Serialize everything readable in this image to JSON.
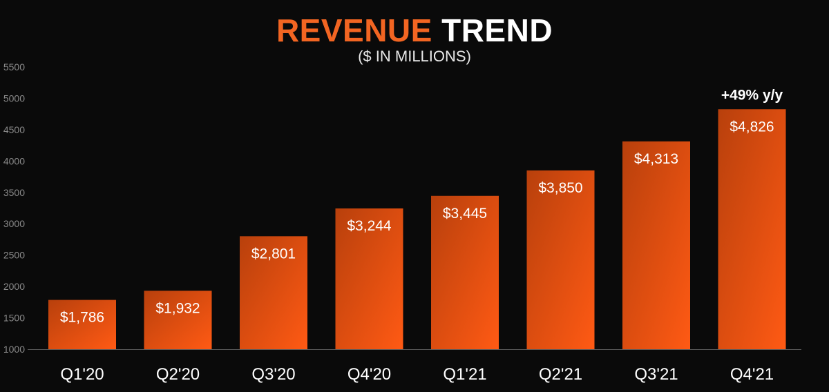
{
  "title": {
    "accent": "REVENUE",
    "main": "TREND"
  },
  "subtitle": "($ IN MILLIONS)",
  "annotation": "+49% y/y",
  "colors": {
    "background": "#0a0a0a",
    "bar_light": "#ff5a14",
    "bar_dark": "#b8400c",
    "title_accent": "#f26522",
    "text": "#ffffff",
    "axis_tick": "#8a8a8a"
  },
  "chart_data": {
    "type": "bar",
    "categories": [
      "Q1'20",
      "Q2'20",
      "Q3'20",
      "Q4'20",
      "Q1'21",
      "Q2'21",
      "Q3'21",
      "Q4'21"
    ],
    "values": [
      1786,
      1932,
      2801,
      3244,
      3445,
      3850,
      4313,
      4826
    ],
    "data_labels": [
      "$1,786",
      "$1,932",
      "$2,801",
      "$3,244",
      "$3,445",
      "$3,850",
      "$4,313",
      "$4,826"
    ],
    "y_ticks": [
      1000,
      1500,
      2000,
      2500,
      3000,
      3500,
      4000,
      4500,
      5000,
      5500
    ],
    "ylim": [
      1000,
      5500
    ],
    "grid": false,
    "legend": "none"
  }
}
